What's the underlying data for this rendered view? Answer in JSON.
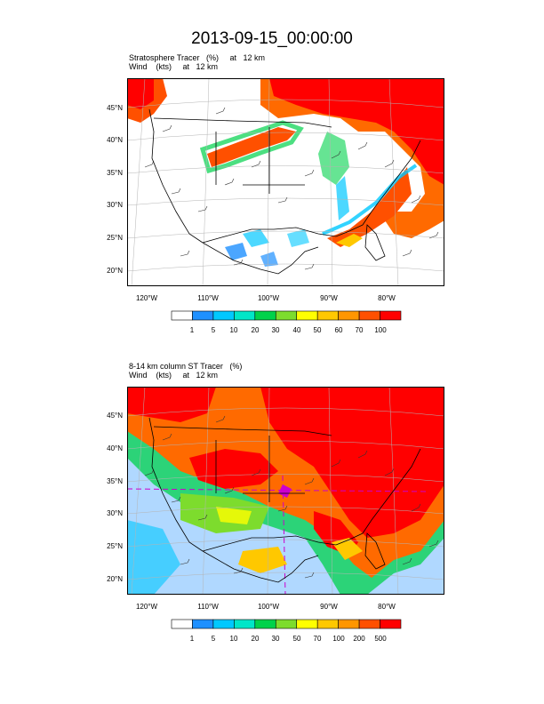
{
  "title": "2013-09-15_00:00:00",
  "panels": [
    {
      "header_line1": "Stratosphere Tracer   (%)     at   12 km",
      "header_line2": "Wind    (kts)     at   12 km",
      "lat_labels": [
        "45°N",
        "40°N",
        "35°N",
        "30°N",
        "25°N",
        "20°N"
      ],
      "lon_labels": [
        "120°W",
        "110°W",
        "100°W",
        "90°W",
        "80°W"
      ],
      "colorbar": {
        "labels": [
          "1",
          "5",
          "10",
          "20",
          "30",
          "40",
          "50",
          "60",
          "70",
          "100"
        ],
        "colors": [
          "#ffffff",
          "#1e90ff",
          "#00c8ff",
          "#00e6c8",
          "#00d24b",
          "#7ddc2d",
          "#ffff00",
          "#ffc800",
          "#ff9600",
          "#ff5000",
          "#ff0000"
        ]
      }
    },
    {
      "header_line1": "8-14 km column ST Tracer   (%)",
      "header_line2": "Wind    (kts)     at   12 km",
      "lat_labels": [
        "45°N",
        "40°N",
        "35°N",
        "30°N",
        "25°N",
        "20°N"
      ],
      "lon_labels": [
        "120°W",
        "110°W",
        "100°W",
        "90°W",
        "80°W"
      ],
      "colorbar": {
        "labels": [
          "1",
          "5",
          "10",
          "20",
          "30",
          "50",
          "70",
          "100",
          "200",
          "500"
        ],
        "colors": [
          "#ffffff",
          "#1e90ff",
          "#00c8ff",
          "#00e6c8",
          "#00d24b",
          "#7ddc2d",
          "#ffff00",
          "#ffc800",
          "#ff9600",
          "#ff5000",
          "#ff0000"
        ]
      }
    }
  ]
}
